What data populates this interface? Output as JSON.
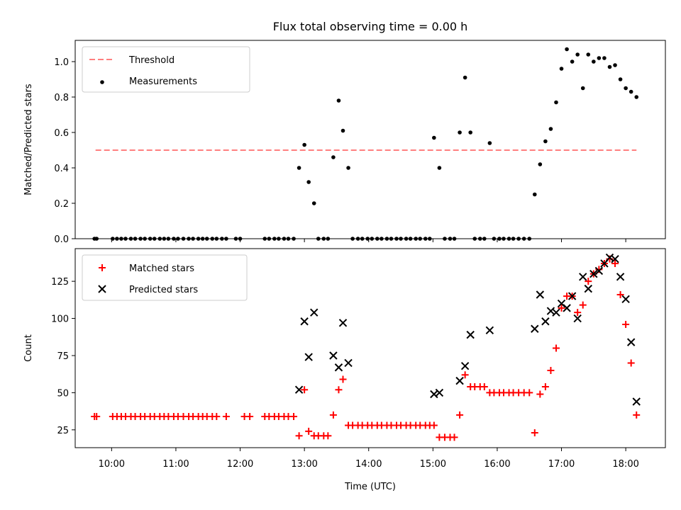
{
  "figure": {
    "title": "Flux total observing time = 0.00 h",
    "xlabel": "Time (UTC)"
  },
  "colors": {
    "threshold": "#ff7f7f",
    "measurements": "#000000",
    "matched": "#ff0000",
    "predicted": "#000000"
  },
  "chart_data": [
    {
      "type": "scatter",
      "ylabel": "Matched/Predicted stars",
      "xlim": [
        "09:26",
        "18:37"
      ],
      "ylim": [
        0,
        1.12
      ],
      "x_ticks": [
        "10:00",
        "11:00",
        "12:00",
        "13:00",
        "14:00",
        "15:00",
        "16:00",
        "17:00",
        "18:00"
      ],
      "y_ticks": [
        "0.0",
        "0.2",
        "0.4",
        "0.6",
        "0.8",
        "1.0"
      ],
      "legend": {
        "placement": "upper-left",
        "entries": [
          "Threshold",
          "Measurements"
        ]
      },
      "series": [
        {
          "name": "Threshold",
          "style": "dashed-line",
          "points": [
            [
              "09:45",
              0.5
            ],
            [
              "18:10",
              0.5
            ]
          ]
        },
        {
          "name": "Measurements",
          "style": "dot",
          "points": [
            [
              "09:44",
              0
            ],
            [
              "09:46",
              0
            ],
            [
              "10:01",
              0
            ],
            [
              "10:05",
              0
            ],
            [
              "10:09",
              0
            ],
            [
              "10:13",
              0
            ],
            [
              "10:18",
              0
            ],
            [
              "10:22",
              0
            ],
            [
              "10:27",
              0
            ],
            [
              "10:31",
              0
            ],
            [
              "10:36",
              0
            ],
            [
              "10:40",
              0
            ],
            [
              "10:45",
              0
            ],
            [
              "10:49",
              0
            ],
            [
              "10:53",
              0
            ],
            [
              "10:58",
              0
            ],
            [
              "11:02",
              0
            ],
            [
              "11:07",
              0
            ],
            [
              "11:12",
              0
            ],
            [
              "11:16",
              0
            ],
            [
              "11:21",
              0
            ],
            [
              "11:25",
              0
            ],
            [
              "11:29",
              0
            ],
            [
              "11:34",
              0
            ],
            [
              "11:38",
              0
            ],
            [
              "11:43",
              0
            ],
            [
              "11:47",
              0
            ],
            [
              "11:56",
              0
            ],
            [
              "12:00",
              0
            ],
            [
              "12:23",
              0
            ],
            [
              "12:27",
              0
            ],
            [
              "12:32",
              0
            ],
            [
              "12:36",
              0
            ],
            [
              "12:41",
              0
            ],
            [
              "12:45",
              0
            ],
            [
              "12:50",
              0
            ],
            [
              "12:55",
              0.4
            ],
            [
              "13:00",
              0.53
            ],
            [
              "13:04",
              0.32
            ],
            [
              "13:09",
              0.2
            ],
            [
              "13:13",
              0
            ],
            [
              "13:18",
              0
            ],
            [
              "13:22",
              0
            ],
            [
              "13:27",
              0.46
            ],
            [
              "13:32",
              0.78
            ],
            [
              "13:36",
              0.61
            ],
            [
              "13:41",
              0.4
            ],
            [
              "13:45",
              0
            ],
            [
              "13:50",
              0
            ],
            [
              "13:54",
              0
            ],
            [
              "13:59",
              0
            ],
            [
              "14:03",
              0
            ],
            [
              "14:08",
              0
            ],
            [
              "14:12",
              0
            ],
            [
              "14:17",
              0
            ],
            [
              "14:21",
              0
            ],
            [
              "14:26",
              0
            ],
            [
              "14:30",
              0
            ],
            [
              "14:35",
              0
            ],
            [
              "14:39",
              0
            ],
            [
              "14:44",
              0
            ],
            [
              "14:48",
              0
            ],
            [
              "14:53",
              0
            ],
            [
              "14:57",
              0
            ],
            [
              "15:01",
              0.57
            ],
            [
              "15:06",
              0.4
            ],
            [
              "15:11",
              0
            ],
            [
              "15:16",
              0
            ],
            [
              "15:20",
              0
            ],
            [
              "15:25",
              0.6
            ],
            [
              "15:30",
              0.91
            ],
            [
              "15:35",
              0.6
            ],
            [
              "15:39",
              0
            ],
            [
              "15:44",
              0
            ],
            [
              "15:48",
              0
            ],
            [
              "15:53",
              0.54
            ],
            [
              "15:57",
              0
            ],
            [
              "16:02",
              0
            ],
            [
              "16:06",
              0
            ],
            [
              "16:11",
              0
            ],
            [
              "16:15",
              0
            ],
            [
              "16:20",
              0
            ],
            [
              "16:25",
              0
            ],
            [
              "16:30",
              0
            ],
            [
              "16:35",
              0.25
            ],
            [
              "16:40",
              0.42
            ],
            [
              "16:45",
              0.55
            ],
            [
              "16:50",
              0.62
            ],
            [
              "16:55",
              0.77
            ],
            [
              "17:00",
              0.96
            ],
            [
              "17:05",
              1.07
            ],
            [
              "17:10",
              1.0
            ],
            [
              "17:15",
              1.04
            ],
            [
              "17:20",
              0.85
            ],
            [
              "17:25",
              1.04
            ],
            [
              "17:30",
              1.0
            ],
            [
              "17:35",
              1.02
            ],
            [
              "17:40",
              1.02
            ],
            [
              "17:45",
              0.97
            ],
            [
              "17:50",
              0.98
            ],
            [
              "17:55",
              0.9
            ],
            [
              "18:00",
              0.85
            ],
            [
              "18:05",
              0.83
            ],
            [
              "18:10",
              0.8
            ]
          ]
        }
      ]
    },
    {
      "type": "scatter",
      "ylabel": "Count",
      "xlabel": "Time (UTC)",
      "xlim": [
        "09:26",
        "18:37"
      ],
      "ylim": [
        13,
        147
      ],
      "x_ticks": [
        "10:00",
        "11:00",
        "12:00",
        "13:00",
        "14:00",
        "15:00",
        "16:00",
        "17:00",
        "18:00"
      ],
      "y_ticks": [
        "25",
        "50",
        "75",
        "100",
        "125"
      ],
      "legend": {
        "placement": "upper-left",
        "entries": [
          "Matched stars",
          "Predicted stars"
        ]
      },
      "series": [
        {
          "name": "Matched stars",
          "marker": "plus",
          "points": [
            [
              "09:44",
              34
            ],
            [
              "09:46",
              34
            ],
            [
              "10:01",
              34
            ],
            [
              "10:05",
              34
            ],
            [
              "10:09",
              34
            ],
            [
              "10:13",
              34
            ],
            [
              "10:18",
              34
            ],
            [
              "10:22",
              34
            ],
            [
              "10:27",
              34
            ],
            [
              "10:31",
              34
            ],
            [
              "10:36",
              34
            ],
            [
              "10:40",
              34
            ],
            [
              "10:45",
              34
            ],
            [
              "10:49",
              34
            ],
            [
              "10:53",
              34
            ],
            [
              "10:58",
              34
            ],
            [
              "11:02",
              34
            ],
            [
              "11:07",
              34
            ],
            [
              "11:12",
              34
            ],
            [
              "11:16",
              34
            ],
            [
              "11:21",
              34
            ],
            [
              "11:25",
              34
            ],
            [
              "11:29",
              34
            ],
            [
              "11:34",
              34
            ],
            [
              "11:38",
              34
            ],
            [
              "11:47",
              34
            ],
            [
              "12:04",
              34
            ],
            [
              "12:09",
              34
            ],
            [
              "12:23",
              34
            ],
            [
              "12:27",
              34
            ],
            [
              "12:32",
              34
            ],
            [
              "12:36",
              34
            ],
            [
              "12:41",
              34
            ],
            [
              "12:45",
              34
            ],
            [
              "12:50",
              34
            ],
            [
              "12:55",
              21
            ],
            [
              "13:00",
              52
            ],
            [
              "13:04",
              24
            ],
            [
              "13:09",
              21
            ],
            [
              "13:13",
              21
            ],
            [
              "13:18",
              21
            ],
            [
              "13:22",
              21
            ],
            [
              "13:27",
              35
            ],
            [
              "13:32",
              52
            ],
            [
              "13:36",
              59
            ],
            [
              "13:41",
              28
            ],
            [
              "13:45",
              28
            ],
            [
              "13:50",
              28
            ],
            [
              "13:54",
              28
            ],
            [
              "13:59",
              28
            ],
            [
              "14:03",
              28
            ],
            [
              "14:08",
              28
            ],
            [
              "14:12",
              28
            ],
            [
              "14:17",
              28
            ],
            [
              "14:21",
              28
            ],
            [
              "14:26",
              28
            ],
            [
              "14:30",
              28
            ],
            [
              "14:35",
              28
            ],
            [
              "14:39",
              28
            ],
            [
              "14:44",
              28
            ],
            [
              "14:48",
              28
            ],
            [
              "14:53",
              28
            ],
            [
              "14:57",
              28
            ],
            [
              "15:01",
              28
            ],
            [
              "15:06",
              20
            ],
            [
              "15:11",
              20
            ],
            [
              "15:16",
              20
            ],
            [
              "15:20",
              20
            ],
            [
              "15:25",
              35
            ],
            [
              "15:30",
              62
            ],
            [
              "15:35",
              54
            ],
            [
              "15:39",
              54
            ],
            [
              "15:44",
              54
            ],
            [
              "15:48",
              54
            ],
            [
              "15:53",
              50
            ],
            [
              "15:57",
              50
            ],
            [
              "16:02",
              50
            ],
            [
              "16:06",
              50
            ],
            [
              "16:11",
              50
            ],
            [
              "16:15",
              50
            ],
            [
              "16:20",
              50
            ],
            [
              "16:25",
              50
            ],
            [
              "16:30",
              50
            ],
            [
              "16:35",
              23
            ],
            [
              "16:40",
              49
            ],
            [
              "16:45",
              54
            ],
            [
              "16:50",
              65
            ],
            [
              "16:55",
              80
            ],
            [
              "17:00",
              107
            ],
            [
              "17:05",
              115
            ],
            [
              "17:10",
              115
            ],
            [
              "17:15",
              104
            ],
            [
              "17:20",
              109
            ],
            [
              "17:25",
              125
            ],
            [
              "17:30",
              130
            ],
            [
              "17:35",
              133
            ],
            [
              "17:40",
              137
            ],
            [
              "17:45",
              140
            ],
            [
              "17:50",
              137
            ],
            [
              "17:55",
              116
            ],
            [
              "18:00",
              96
            ],
            [
              "18:05",
              70
            ],
            [
              "18:10",
              35
            ]
          ]
        },
        {
          "name": "Predicted stars",
          "marker": "x",
          "points": [
            [
              "12:55",
              52
            ],
            [
              "13:00",
              98
            ],
            [
              "13:04",
              74
            ],
            [
              "13:09",
              104
            ],
            [
              "13:27",
              75
            ],
            [
              "13:32",
              67
            ],
            [
              "13:36",
              97
            ],
            [
              "13:41",
              70
            ],
            [
              "15:01",
              49
            ],
            [
              "15:06",
              50
            ],
            [
              "15:25",
              58
            ],
            [
              "15:30",
              68
            ],
            [
              "15:35",
              89
            ],
            [
              "15:53",
              92
            ],
            [
              "16:35",
              93
            ],
            [
              "16:40",
              116
            ],
            [
              "16:45",
              98
            ],
            [
              "16:50",
              105
            ],
            [
              "16:55",
              104
            ],
            [
              "17:00",
              110
            ],
            [
              "17:05",
              107
            ],
            [
              "17:10",
              115
            ],
            [
              "17:15",
              100
            ],
            [
              "17:20",
              128
            ],
            [
              "17:25",
              120
            ],
            [
              "17:30",
              130
            ],
            [
              "17:35",
              132
            ],
            [
              "17:40",
              137
            ],
            [
              "17:45",
              141
            ],
            [
              "17:50",
              140
            ],
            [
              "17:55",
              128
            ],
            [
              "18:00",
              113
            ],
            [
              "18:05",
              84
            ],
            [
              "18:10",
              44
            ]
          ]
        }
      ]
    }
  ]
}
